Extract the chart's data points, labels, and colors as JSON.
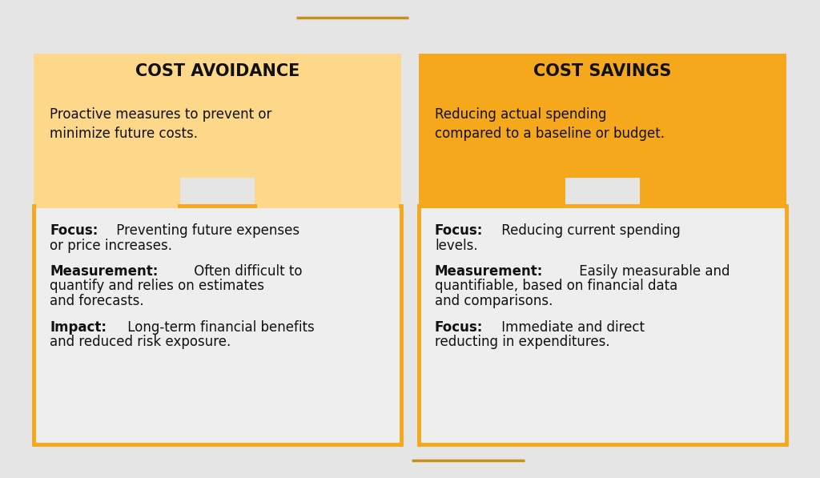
{
  "bg_color": "#e5e5e5",
  "left_header_bg": "#fdd88a",
  "right_header_bg": "#f5a81c",
  "detail_box_bg": "#eeeeee",
  "detail_box_border": "#f5a81c",
  "decorator_line_color": "#c8901a",
  "left_title": "COST AVOIDANCE",
  "right_title": "COST SAVINGS",
  "left_subtitle": "Proactive measures to prevent or\nminimize future costs.",
  "right_subtitle": "Reducing actual spending\ncompared to a baseline or budget.",
  "left_details": [
    {
      "bold": "Focus:",
      "normal": " Preventing future expenses\nor price increases."
    },
    {
      "bold": "Measurement:",
      "normal": " Often difficult to\nquantify and relies on estimates\nand forecasts."
    },
    {
      "bold": "Impact:",
      "normal": " Long-term financial benefits\nand reduced risk exposure."
    }
  ],
  "right_details": [
    {
      "bold": "Focus:",
      "normal": " Reducing current spending\nlevels."
    },
    {
      "bold": "Measurement:",
      "normal": " Easily measurable and\nquantifiable, based on financial data\nand comparisons."
    },
    {
      "bold": "Focus:",
      "normal": " Immediate and direct\nreducting in expenditures."
    }
  ],
  "title_fontsize": 15,
  "subtitle_fontsize": 12,
  "detail_fontsize": 12
}
